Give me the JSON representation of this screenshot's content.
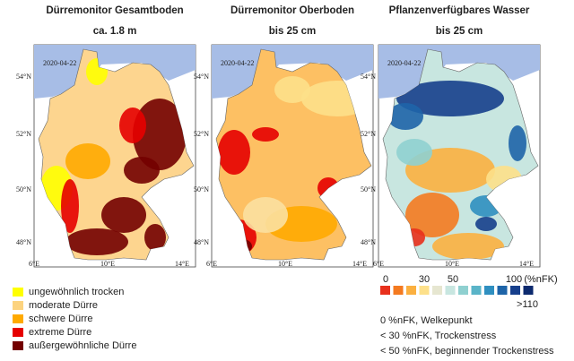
{
  "panels": [
    {
      "title": "Dürremonitor Gesamtboden",
      "subtitle": "ca. 1.8 m",
      "date": "2020-04-22"
    },
    {
      "title": "Dürremonitor Oberboden",
      "subtitle": "bis 25 cm",
      "date": "2020-04-22"
    },
    {
      "title": "Pflanzenverfügbares Wasser",
      "subtitle": "bis 25 cm",
      "date": "2020-04-22"
    }
  ],
  "lat_labels": [
    "54°N",
    "52°N",
    "50°N",
    "48°N"
  ],
  "lon_labels": [
    "6°E",
    "10°E",
    "14°E"
  ],
  "drought_legend": [
    {
      "label": "ungewöhnlich trocken",
      "color": "#ffff00"
    },
    {
      "label": "moderate Dürre",
      "color": "#fcd37f"
    },
    {
      "label": "schwere Dürre",
      "color": "#ffaa00"
    },
    {
      "label": "extreme Dürre",
      "color": "#e60000"
    },
    {
      "label": "außergewöhnliche Dürre",
      "color": "#730000"
    }
  ],
  "water_scale": {
    "colors": [
      "#e8301c",
      "#f47a20",
      "#fbb040",
      "#fde08a",
      "#e6e6d0",
      "#c8e6e0",
      "#8fd0d0",
      "#5ab4c8",
      "#2f8fc0",
      "#1e64a8",
      "#163f8c",
      "#0c2a6e"
    ],
    "labels": [
      "0",
      "30",
      "50",
      "100"
    ],
    "unit": "(%nFK)",
    "max_label": ">110"
  },
  "notes": [
    "0 %nFK, Welkepunkt",
    "< 30 %nFK, Trockenstress",
    "< 50 %nFK, beginnender Trockenstress"
  ]
}
